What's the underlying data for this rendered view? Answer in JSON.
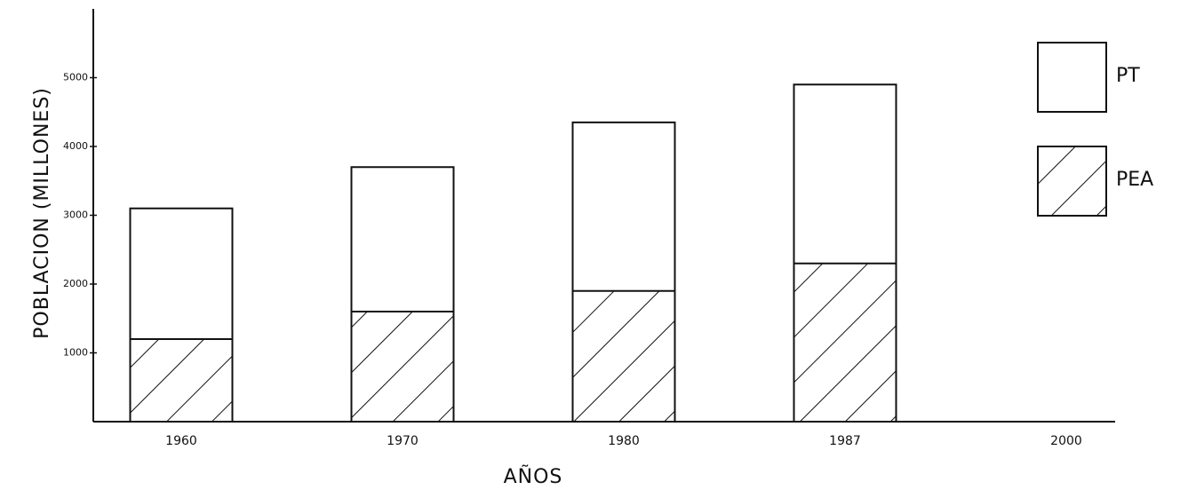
{
  "chart_data": {
    "type": "bar",
    "y_label": "POBLACION (MILLONES)",
    "x_label": "AÑOS",
    "categories": [
      "1960",
      "1970",
      "1980",
      "1987",
      "2000"
    ],
    "series": [
      {
        "name": "PT",
        "color": "#ffffff",
        "values": [
          3100,
          3700,
          4350,
          4900,
          null
        ]
      },
      {
        "name": "PEA",
        "color": "#111111",
        "hatch": true,
        "values": [
          1200,
          1600,
          1900,
          2300,
          null
        ]
      }
    ],
    "ylim": [
      0,
      6000
    ],
    "yticks": [
      1000,
      2000,
      3000,
      4000,
      5000
    ],
    "legend": "right"
  }
}
